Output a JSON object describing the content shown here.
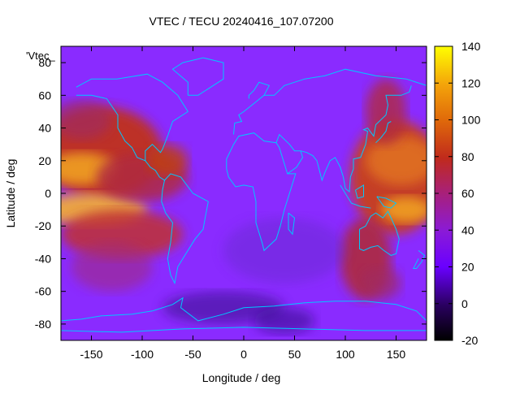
{
  "chart_data": {
    "type": "heatmap",
    "title": "VTEC / TECU 20240416_107.07200",
    "xlabel": "Longitude / deg",
    "ylabel": "Latitude / deg",
    "xlim": [
      -180,
      180
    ],
    "ylim": [
      -90,
      90
    ],
    "xticks": [
      -150,
      -100,
      -50,
      0,
      50,
      100,
      150
    ],
    "yticks": [
      -80,
      -60,
      -40,
      -20,
      0,
      20,
      40,
      60,
      80
    ],
    "colorbar": {
      "min": -20,
      "max": 140,
      "ticks": [
        -20,
        0,
        20,
        40,
        60,
        80,
        100,
        120,
        140
      ]
    },
    "legend_label": "'Vtec_",
    "coastline_color": "#00c8ff",
    "colormap": "black-purple-red-orange-yellow"
  }
}
